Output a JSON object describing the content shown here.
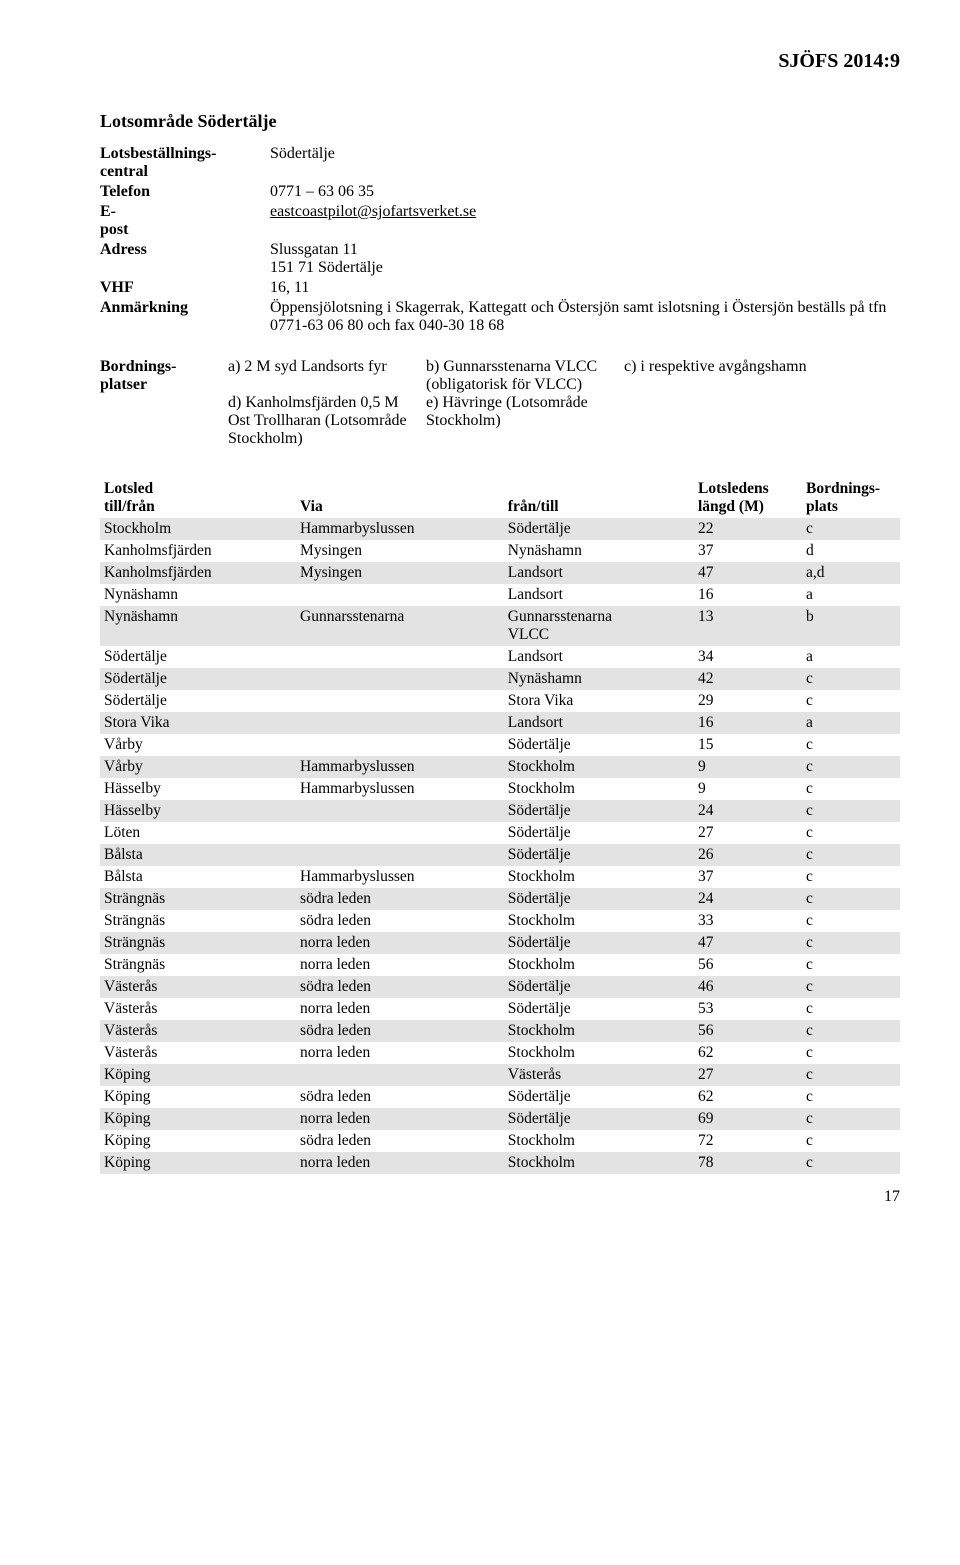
{
  "doc": {
    "header_right": "SJÖFS 2014:9",
    "section_title": "Lotsområde Södertälje",
    "page_number": "17"
  },
  "info": {
    "rows": [
      {
        "label": "Lotsbeställnings-central",
        "value": "Södertälje"
      },
      {
        "label": "Telefon",
        "value": "0771 – 63 06 35"
      },
      {
        "label": "E-post",
        "value": "eastcoastpilot@sjofartsverket.se",
        "underline": true
      },
      {
        "label": "Adress",
        "value": "Slussgatan 11\n151 71 Södertälje"
      },
      {
        "label": "VHF",
        "value": "16, 11"
      },
      {
        "label": "Anmärkning",
        "value": "Öppensjölotsning i Skagerrak, Kattegatt och Östersjön samt islotsning i Östersjön beställs på tfn 0771-63 06 80 och fax 040-30 18 68"
      }
    ]
  },
  "boarding": {
    "label": "Bordnings-platser",
    "cells": {
      "a": "a) 2 M syd Landsorts fyr",
      "b": "b) Gunnarsstenarna VLCC (obligatorisk för VLCC)",
      "c": "c) i respektive avgångshamn",
      "d": "d) Kanholmsfjärden 0,5 M Ost Trollharan (Lotsområde Stockholm)",
      "e": "e) Hävringe (Lotsområde Stockholm)"
    }
  },
  "routes": {
    "header": {
      "lotsled_line1": "Lotsled",
      "till_fran": "till/från",
      "via": "Via",
      "fran_till": "från/till",
      "len_line1": "Lotsledens",
      "len_line2": "längd (M)",
      "plats_line1": "Bordnings-",
      "plats_line2": "plats"
    },
    "rows": [
      {
        "shaded": true,
        "from": "Stockholm",
        "via": "Hammarbyslussen",
        "to": "Södertälje",
        "len": "22",
        "p": "c"
      },
      {
        "shaded": false,
        "from": "Kanholmsfjärden",
        "via": "Mysingen",
        "to": "Nynäshamn",
        "len": "37",
        "p": "d"
      },
      {
        "shaded": true,
        "from": "Kanholmsfjärden",
        "via": "Mysingen",
        "to": "Landsort",
        "len": "47",
        "p": "a,d"
      },
      {
        "shaded": false,
        "from": "Nynäshamn",
        "via": "",
        "to": "Landsort",
        "len": "16",
        "p": "a"
      },
      {
        "shaded": true,
        "from": "Nynäshamn",
        "via": "Gunnarsstenarna",
        "to": "Gunnarsstenarna\nVLCC",
        "len": "13",
        "p": "b"
      },
      {
        "shaded": false,
        "from": "Södertälje",
        "via": "",
        "to": "Landsort",
        "len": "34",
        "p": "a"
      },
      {
        "shaded": true,
        "from": "Södertälje",
        "via": "",
        "to": "Nynäshamn",
        "len": "42",
        "p": "c"
      },
      {
        "shaded": false,
        "from": "Södertälje",
        "via": "",
        "to": "Stora Vika",
        "len": "29",
        "p": "c"
      },
      {
        "shaded": true,
        "from": "Stora Vika",
        "via": "",
        "to": "Landsort",
        "len": "16",
        "p": "a"
      },
      {
        "shaded": false,
        "from": "Vårby",
        "via": "",
        "to": "Södertälje",
        "len": "15",
        "p": "c"
      },
      {
        "shaded": true,
        "from": "Vårby",
        "via": "Hammarbyslussen",
        "to": "Stockholm",
        "len": "9",
        "p": "c"
      },
      {
        "shaded": false,
        "from": "Hässelby",
        "via": "Hammarbyslussen",
        "to": "Stockholm",
        "len": "9",
        "p": "c"
      },
      {
        "shaded": true,
        "from": "Hässelby",
        "via": "",
        "to": "Södertälje",
        "len": "24",
        "p": "c"
      },
      {
        "shaded": false,
        "from": "Löten",
        "via": "",
        "to": "Södertälje",
        "len": "27",
        "p": "c"
      },
      {
        "shaded": true,
        "from": "Bålsta",
        "via": "",
        "to": "Södertälje",
        "len": "26",
        "p": "c"
      },
      {
        "shaded": false,
        "from": "Bålsta",
        "via": "Hammarbyslussen",
        "to": "Stockholm",
        "len": "37",
        "p": "c"
      },
      {
        "shaded": true,
        "from": "Strängnäs",
        "via": "södra leden",
        "to": "Södertälje",
        "len": "24",
        "p": "c"
      },
      {
        "shaded": false,
        "from": "Strängnäs",
        "via": "södra leden",
        "to": "Stockholm",
        "len": "33",
        "p": "c"
      },
      {
        "shaded": true,
        "from": "Strängnäs",
        "via": "norra leden",
        "to": "Södertälje",
        "len": "47",
        "p": "c"
      },
      {
        "shaded": false,
        "from": "Strängnäs",
        "via": "norra leden",
        "to": "Stockholm",
        "len": "56",
        "p": "c"
      },
      {
        "shaded": true,
        "from": "Västerås",
        "via": "södra leden",
        "to": "Södertälje",
        "len": "46",
        "p": "c"
      },
      {
        "shaded": false,
        "from": "Västerås",
        "via": "norra leden",
        "to": "Södertälje",
        "len": "53",
        "p": "c"
      },
      {
        "shaded": true,
        "from": "Västerås",
        "via": "södra leden",
        "to": "Stockholm",
        "len": "56",
        "p": "c"
      },
      {
        "shaded": false,
        "from": "Västerås",
        "via": "norra leden",
        "to": "Stockholm",
        "len": "62",
        "p": "c"
      },
      {
        "shaded": true,
        "from": "Köping",
        "via": "",
        "to": "Västerås",
        "len": "27",
        "p": "c"
      },
      {
        "shaded": false,
        "from": "Köping",
        "via": "södra leden",
        "to": "Södertälje",
        "len": "62",
        "p": "c"
      },
      {
        "shaded": true,
        "from": "Köping",
        "via": "norra leden",
        "to": "Södertälje",
        "len": "69",
        "p": "c"
      },
      {
        "shaded": false,
        "from": "Köping",
        "via": "södra leden",
        "to": "Stockholm",
        "len": "72",
        "p": "c"
      },
      {
        "shaded": true,
        "from": "Köping",
        "via": "norra leden",
        "to": "Stockholm",
        "len": "78",
        "p": "c"
      }
    ]
  }
}
